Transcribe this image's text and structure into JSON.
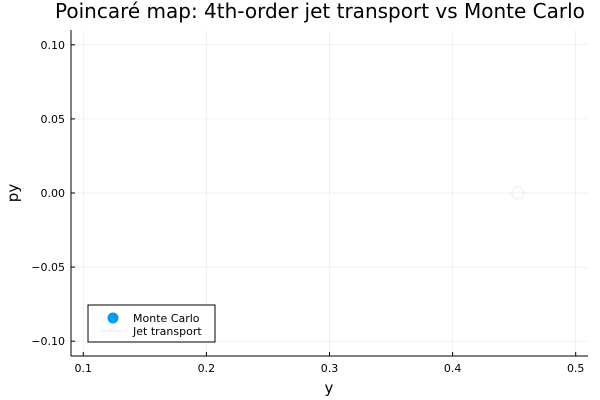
{
  "chart_data": {
    "type": "scatter",
    "title": "Poincaré map: 4th-order jet transport vs Monte Carlo",
    "xlabel": "y",
    "ylabel": "py",
    "xlim": [
      0.09,
      0.51
    ],
    "ylim": [
      -0.11,
      0.11
    ],
    "xticks": [
      0.1,
      0.2,
      0.3,
      0.4,
      0.5
    ],
    "xtick_labels": [
      "0.1",
      "0.2",
      "0.3",
      "0.4",
      "0.5"
    ],
    "yticks": [
      0.1,
      0.05,
      0.0,
      -0.05,
      -0.1
    ],
    "ytick_labels": [
      "0.10",
      "0.05",
      "0.00",
      "−0.05",
      "−0.10"
    ],
    "grid": true,
    "legend_position": "bottom-left",
    "series": [
      {
        "name": "Monte Carlo",
        "kind": "scatter",
        "color": "#009AFA",
        "x": [],
        "y": []
      },
      {
        "name": "Jet transport",
        "kind": "line",
        "color": "#E26F46",
        "x": [
          0.453
        ],
        "y": [
          0.0
        ]
      }
    ]
  }
}
